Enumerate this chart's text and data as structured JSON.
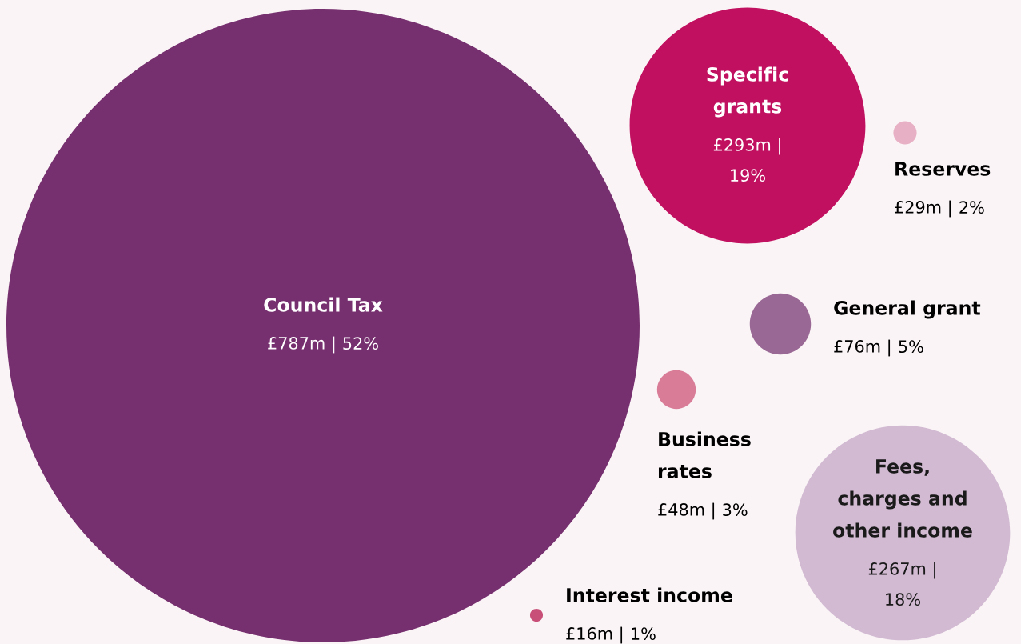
{
  "chart_data": {
    "type": "other",
    "categories": [
      "Council Tax",
      "Specific grants",
      "Reserves",
      "General grant",
      "Business rates",
      "Fees, charges and other income",
      "Interest income"
    ],
    "values": [
      787,
      293,
      29,
      76,
      48,
      267,
      16
    ],
    "value_labels": [
      "£787m |",
      "£293m |",
      "£29m |",
      "£76m |",
      "£48m |",
      "£267m |",
      "£16m |"
    ],
    "annotations": [
      "52%",
      "19%",
      "2%",
      "5%",
      "3%",
      "18%",
      "1%"
    ],
    "colors": [
      "#77306f",
      "#c0105f",
      "#e8b0c4",
      "#9a6895",
      "#d87c98",
      "#d2bad2",
      "#c84f78"
    ]
  }
}
